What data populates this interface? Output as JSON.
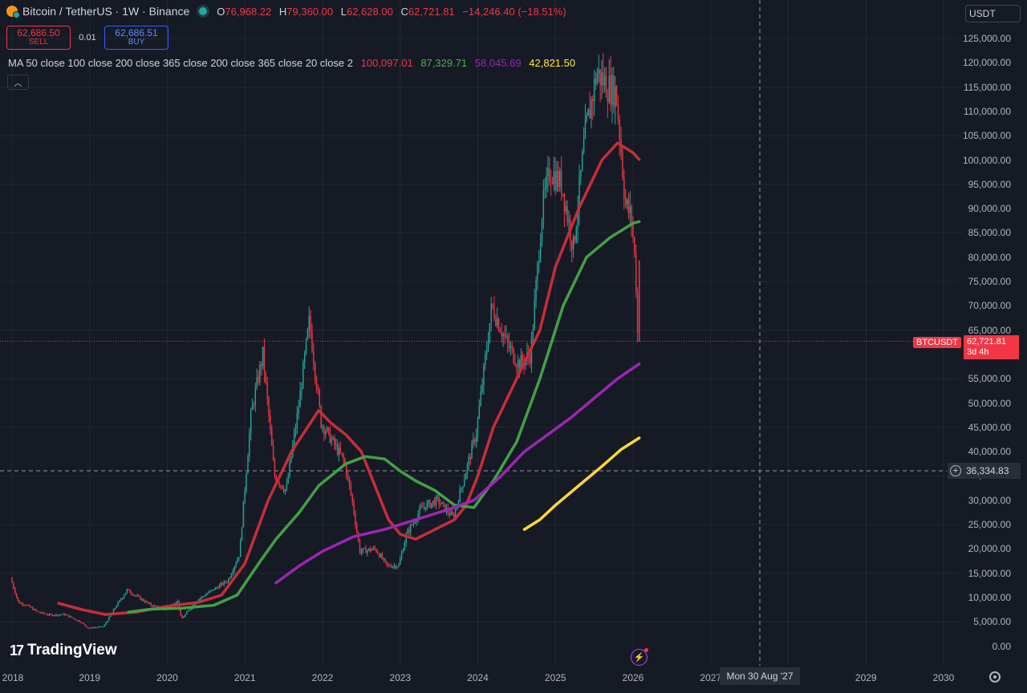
{
  "header": {
    "symbol": "Bitcoin / TetherUS · 1W · Binance",
    "ohlc": [
      {
        "k": "O",
        "v": "76,968.22"
      },
      {
        "k": "H",
        "v": "79,360.00"
      },
      {
        "k": "L",
        "v": "62,628.00"
      },
      {
        "k": "C",
        "v": "62,721.81"
      }
    ],
    "change": "−14,246.40 (−18.51%)"
  },
  "trade": {
    "sell_price": "62,686.50",
    "sell_label": "SELL",
    "spread": "0.01",
    "buy_price": "62,686.51",
    "buy_label": "BUY"
  },
  "ma_legend": {
    "text": "MA 50 close 100 close 200 close 365 close 200 close 365 close 20 close 2",
    "values": [
      {
        "v": "100,097.01",
        "color": "#f23645"
      },
      {
        "v": "87,329.71",
        "color": "#4caf50"
      },
      {
        "v": "58,045.69",
        "color": "#9c27b0"
      },
      {
        "v": "42,821.50",
        "color": "#ffeb3b"
      }
    ]
  },
  "currency": "USDT",
  "price_tag": {
    "symbol": "BTCUSDT",
    "price": "62,721.81",
    "countdown": "3d 4h"
  },
  "crosshair": {
    "price": "36,334.83",
    "date": "Mon 30 Aug '27"
  },
  "logo": "TradingView",
  "colors": {
    "bg": "#161a25",
    "up": "#26a69a",
    "down": "#f23645",
    "ma100": "#c62e3a",
    "ma200": "#43a047",
    "ma365_200": "#9c27b0",
    "ma365_20": "#fdd835"
  },
  "chart_data": {
    "type": "line",
    "title": "Bitcoin / TetherUS · 1W · Binance",
    "y_ticks": [
      "125,000.00",
      "120,000.00",
      "115,000.00",
      "110,000.00",
      "105,000.00",
      "100,000.00",
      "95,000.00",
      "90,000.00",
      "85,000.00",
      "80,000.00",
      "75,000.00",
      "70,000.00",
      "65,000.00",
      "60,000.00",
      "55,000.00",
      "50,000.00",
      "45,000.00",
      "40,000.00",
      "35,000.00",
      "30,000.00",
      "25,000.00",
      "20,000.00",
      "15,000.00",
      "10,000.00",
      "5,000.00",
      "0.00"
    ],
    "x_ticks": [
      "2018",
      "2019",
      "2020",
      "2021",
      "2022",
      "2023",
      "2024",
      "2025",
      "2026",
      "2027",
      "2028",
      "2029",
      "2030"
    ],
    "ylim": [
      0,
      125000
    ],
    "xlim": [
      2018.0,
      2030.5
    ],
    "price": [
      [
        2018.0,
        14000
      ],
      [
        2018.1,
        9000
      ],
      [
        2018.2,
        8500
      ],
      [
        2018.35,
        7000
      ],
      [
        2018.5,
        6400
      ],
      [
        2018.7,
        6500
      ],
      [
        2018.9,
        5000
      ],
      [
        2019.0,
        3700
      ],
      [
        2019.2,
        4000
      ],
      [
        2019.35,
        8000
      ],
      [
        2019.5,
        11500
      ],
      [
        2019.65,
        10000
      ],
      [
        2019.8,
        8500
      ],
      [
        2020.0,
        7500
      ],
      [
        2020.15,
        9500
      ],
      [
        2020.2,
        5500
      ],
      [
        2020.4,
        9400
      ],
      [
        2020.6,
        11500
      ],
      [
        2020.8,
        13500
      ],
      [
        2020.95,
        19000
      ],
      [
        2021.0,
        29000
      ],
      [
        2021.1,
        48000
      ],
      [
        2021.25,
        60000
      ],
      [
        2021.4,
        35000
      ],
      [
        2021.55,
        32000
      ],
      [
        2021.7,
        48000
      ],
      [
        2021.85,
        67000
      ],
      [
        2022.0,
        46000
      ],
      [
        2022.15,
        42000
      ],
      [
        2022.3,
        38000
      ],
      [
        2022.4,
        30000
      ],
      [
        2022.5,
        19500
      ],
      [
        2022.7,
        20000
      ],
      [
        2022.85,
        16500
      ],
      [
        2023.0,
        16600
      ],
      [
        2023.1,
        23000
      ],
      [
        2023.3,
        28500
      ],
      [
        2023.5,
        30000
      ],
      [
        2023.7,
        26500
      ],
      [
        2023.85,
        35000
      ],
      [
        2024.0,
        44000
      ],
      [
        2024.2,
        70000
      ],
      [
        2024.4,
        62000
      ],
      [
        2024.55,
        58000
      ],
      [
        2024.7,
        60000
      ],
      [
        2024.85,
        90000
      ],
      [
        2024.95,
        98000
      ],
      [
        2025.1,
        95000
      ],
      [
        2025.25,
        82000
      ],
      [
        2025.4,
        105000
      ],
      [
        2025.55,
        118000
      ],
      [
        2025.7,
        115000
      ],
      [
        2025.8,
        114000
      ],
      [
        2025.85,
        105000
      ],
      [
        2025.92,
        91000
      ],
      [
        2026.0,
        88000
      ],
      [
        2026.05,
        78000
      ],
      [
        2026.08,
        62721.81
      ]
    ],
    "series": [
      {
        "name": "MA 100 close",
        "values": [
          [
            2018.6,
            8800
          ],
          [
            2018.9,
            7500
          ],
          [
            2019.2,
            6500
          ],
          [
            2019.6,
            7000
          ],
          [
            2020.0,
            8200
          ],
          [
            2020.4,
            9000
          ],
          [
            2020.7,
            10500
          ],
          [
            2021.0,
            17000
          ],
          [
            2021.3,
            30000
          ],
          [
            2021.6,
            40000
          ],
          [
            2021.95,
            48500
          ],
          [
            2022.1,
            46000
          ],
          [
            2022.3,
            43500
          ],
          [
            2022.5,
            40000
          ],
          [
            2022.7,
            32000
          ],
          [
            2022.85,
            26000
          ],
          [
            2023.0,
            23000
          ],
          [
            2023.2,
            22000
          ],
          [
            2023.45,
            24000
          ],
          [
            2023.7,
            26000
          ],
          [
            2023.85,
            29000
          ],
          [
            2024.0,
            35000
          ],
          [
            2024.2,
            45000
          ],
          [
            2024.5,
            55000
          ],
          [
            2024.8,
            65000
          ],
          [
            2025.0,
            78000
          ],
          [
            2025.3,
            90000
          ],
          [
            2025.6,
            100000
          ],
          [
            2025.8,
            103500
          ],
          [
            2026.0,
            101500
          ],
          [
            2026.08,
            100097.01
          ]
        ]
      },
      {
        "name": "MA 200 close",
        "values": [
          [
            2019.5,
            7000
          ],
          [
            2019.8,
            7600
          ],
          [
            2020.2,
            7800
          ],
          [
            2020.6,
            8400
          ],
          [
            2020.9,
            10500
          ],
          [
            2021.2,
            17500
          ],
          [
            2021.4,
            22000
          ],
          [
            2021.7,
            27500
          ],
          [
            2021.95,
            33000
          ],
          [
            2022.3,
            37500
          ],
          [
            2022.55,
            39000
          ],
          [
            2022.8,
            38500
          ],
          [
            2023.0,
            36000
          ],
          [
            2023.2,
            34000
          ],
          [
            2023.45,
            32000
          ],
          [
            2023.7,
            29000
          ],
          [
            2023.95,
            28500
          ],
          [
            2024.2,
            34000
          ],
          [
            2024.5,
            42000
          ],
          [
            2024.8,
            55000
          ],
          [
            2025.1,
            70000
          ],
          [
            2025.4,
            80000
          ],
          [
            2025.7,
            84000
          ],
          [
            2026.0,
            87000
          ],
          [
            2026.08,
            87329.71
          ]
        ]
      },
      {
        "name": "MA 365 close 200",
        "values": [
          [
            2021.4,
            13000
          ],
          [
            2021.7,
            16500
          ],
          [
            2022.0,
            19500
          ],
          [
            2022.4,
            22500
          ],
          [
            2022.8,
            24000
          ],
          [
            2023.2,
            26000
          ],
          [
            2023.6,
            28000
          ],
          [
            2023.95,
            30000
          ],
          [
            2024.3,
            35000
          ],
          [
            2024.6,
            40000
          ],
          [
            2024.9,
            43500
          ],
          [
            2025.2,
            47000
          ],
          [
            2025.5,
            51000
          ],
          [
            2025.8,
            55000
          ],
          [
            2026.08,
            58045.69
          ]
        ]
      },
      {
        "name": "MA 365 close 20",
        "values": [
          [
            2024.6,
            24000
          ],
          [
            2024.8,
            26000
          ],
          [
            2025.0,
            29000
          ],
          [
            2025.3,
            33000
          ],
          [
            2025.6,
            37000
          ],
          [
            2025.85,
            40500
          ],
          [
            2026.08,
            42821.5
          ]
        ]
      }
    ],
    "grid": true,
    "legend": "top-left"
  }
}
